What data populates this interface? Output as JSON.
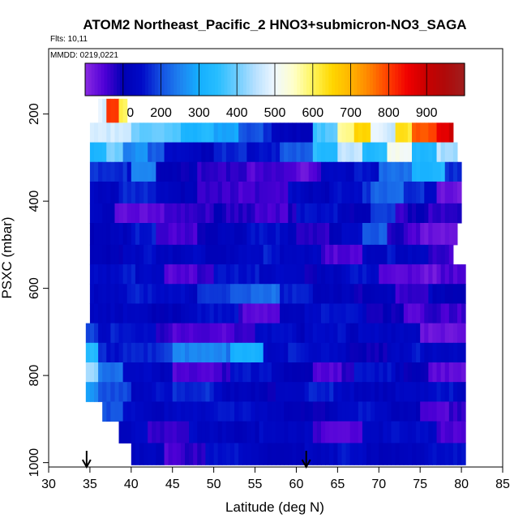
{
  "chart_data": {
    "type": "heatmap",
    "title": "ATOM2 Northeast_Pacific_2 HNO3+submicron-NO3_SAGA",
    "flights_note": "Flts: 10,11",
    "date_note": "MMDD: 0219,0221",
    "xlabel": "Latitude (deg N)",
    "ylabel": "PSXC (mbar)",
    "xlim": [
      30,
      85
    ],
    "ylim": [
      1010,
      50
    ],
    "y_reversed": true,
    "x_ticks": [
      "30",
      "35",
      "40",
      "45",
      "50",
      "55",
      "60",
      "65",
      "70",
      "75",
      "80",
      "85"
    ],
    "y_ticks": [
      "200",
      "400",
      "600",
      "800",
      "1000"
    ],
    "x_tick_values": [
      30,
      35,
      40,
      45,
      50,
      55,
      60,
      65,
      70,
      75,
      80,
      85
    ],
    "y_tick_values": [
      200,
      400,
      600,
      800,
      1000
    ],
    "colorbar": {
      "range": [
        0,
        1000
      ],
      "tick_labels": [
        "100",
        "200",
        "300",
        "400",
        "500",
        "600",
        "700",
        "800",
        "900"
      ],
      "tick_values": [
        100,
        200,
        300,
        400,
        500,
        600,
        700,
        800,
        900
      ],
      "boundaries": [
        0,
        100,
        200,
        300,
        400,
        500,
        600,
        700,
        800,
        900,
        1000
      ],
      "colors": [
        "#8a2be2",
        "#0000b8",
        "#2060e0",
        "#1ab0ff",
        "#e8f4ff",
        "#fff060",
        "#ffa000",
        "#ff2000",
        "#c00000",
        "#a01818"
      ]
    },
    "grid": false,
    "markers": [
      {
        "lat": 34.6,
        "label": "arrow-down"
      },
      {
        "lat": 61.2,
        "label": "arrow-down"
      }
    ],
    "layers": [
      {
        "p_top": 165,
        "p_bot": 220,
        "lat_min": 36,
        "lat_max": 39.5,
        "segments": [
          [
            36,
            37,
            480
          ],
          [
            37,
            38.5,
            820
          ],
          [
            38.5,
            39.5,
            620
          ]
        ]
      },
      {
        "p_top": 220,
        "p_bot": 265,
        "lat_min": 35,
        "lat_max": 79,
        "segments": [
          [
            35,
            40,
            460
          ],
          [
            40,
            46,
            400
          ],
          [
            46,
            50,
            330
          ],
          [
            50,
            53,
            280
          ],
          [
            53,
            57,
            190
          ],
          [
            57,
            62,
            130
          ],
          [
            62,
            65,
            380
          ],
          [
            65,
            67,
            560
          ],
          [
            67,
            69,
            640
          ],
          [
            69,
            72,
            470
          ],
          [
            72,
            74,
            640
          ],
          [
            74,
            77,
            800
          ],
          [
            77,
            79,
            880
          ]
        ]
      },
      {
        "p_top": 265,
        "p_bot": 310,
        "lat_min": 35,
        "lat_max": 79.5,
        "segments": [
          [
            35,
            37,
            330
          ],
          [
            37,
            39,
            420
          ],
          [
            39,
            42,
            260
          ],
          [
            42,
            44,
            200
          ],
          [
            44,
            50,
            130
          ],
          [
            50,
            54,
            180
          ],
          [
            54,
            58,
            140
          ],
          [
            58,
            62,
            200
          ],
          [
            62,
            65,
            350
          ],
          [
            65,
            68,
            470
          ],
          [
            68,
            71,
            340
          ],
          [
            71,
            74,
            500
          ],
          [
            74,
            77,
            310
          ],
          [
            77,
            79.5,
            450
          ]
        ]
      },
      {
        "p_top": 310,
        "p_bot": 355,
        "lat_min": 35,
        "lat_max": 80,
        "segments": [
          [
            35,
            40,
            160
          ],
          [
            40,
            43,
            260
          ],
          [
            43,
            48,
            110
          ],
          [
            48,
            55,
            60
          ],
          [
            55,
            60,
            70
          ],
          [
            60,
            63,
            40
          ],
          [
            63,
            67,
            120
          ],
          [
            67,
            70,
            150
          ],
          [
            70,
            74,
            240
          ],
          [
            74,
            78,
            320
          ],
          [
            78,
            80,
            160
          ]
        ]
      },
      {
        "p_top": 355,
        "p_bot": 405,
        "lat_min": 35,
        "lat_max": 80,
        "segments": [
          [
            35,
            39,
            140
          ],
          [
            39,
            43,
            160
          ],
          [
            43,
            48,
            120
          ],
          [
            48,
            53,
            80
          ],
          [
            53,
            59,
            50
          ],
          [
            59,
            64,
            130
          ],
          [
            64,
            69,
            160
          ],
          [
            69,
            73,
            210
          ],
          [
            73,
            77,
            160
          ],
          [
            77,
            80,
            40
          ]
        ]
      },
      {
        "p_top": 405,
        "p_bot": 450,
        "lat_min": 35,
        "lat_max": 80,
        "segments": [
          [
            35,
            38,
            130
          ],
          [
            38,
            43,
            50
          ],
          [
            43,
            50,
            60
          ],
          [
            50,
            55,
            90
          ],
          [
            55,
            60,
            70
          ],
          [
            60,
            65,
            140
          ],
          [
            65,
            69,
            110
          ],
          [
            69,
            72,
            200
          ],
          [
            72,
            76,
            80
          ],
          [
            76,
            80,
            60
          ]
        ]
      },
      {
        "p_top": 450,
        "p_bot": 500,
        "lat_min": 35,
        "lat_max": 79.5,
        "segments": [
          [
            35,
            40,
            110
          ],
          [
            40,
            43,
            150
          ],
          [
            43,
            48,
            70
          ],
          [
            48,
            54,
            110
          ],
          [
            54,
            60,
            140
          ],
          [
            60,
            64,
            90
          ],
          [
            64,
            68,
            130
          ],
          [
            68,
            71,
            200
          ],
          [
            71,
            75,
            70
          ],
          [
            75,
            79.5,
            40
          ]
        ]
      },
      {
        "p_top": 500,
        "p_bot": 545,
        "lat_min": 35,
        "lat_max": 79,
        "segments": [
          [
            35,
            39,
            120
          ],
          [
            39,
            43,
            140
          ],
          [
            43,
            47,
            110
          ],
          [
            47,
            53,
            130
          ],
          [
            53,
            58,
            150
          ],
          [
            58,
            63,
            120
          ],
          [
            63,
            68,
            60
          ],
          [
            68,
            72,
            140
          ],
          [
            72,
            76,
            120
          ],
          [
            76,
            79,
            60
          ]
        ]
      },
      {
        "p_top": 545,
        "p_bot": 590,
        "lat_min": 35,
        "lat_max": 80.5,
        "segments": [
          [
            35,
            39,
            130
          ],
          [
            39,
            44,
            150
          ],
          [
            44,
            50,
            60
          ],
          [
            50,
            55,
            140
          ],
          [
            55,
            61,
            150
          ],
          [
            61,
            66,
            110
          ],
          [
            66,
            70,
            140
          ],
          [
            70,
            75,
            60
          ],
          [
            75,
            80.5,
            40
          ]
        ]
      },
      {
        "p_top": 590,
        "p_bot": 635,
        "lat_min": 35,
        "lat_max": 80.5,
        "segments": [
          [
            35,
            38,
            140
          ],
          [
            38,
            43,
            150
          ],
          [
            43,
            48,
            130
          ],
          [
            48,
            52,
            190
          ],
          [
            52,
            58,
            220
          ],
          [
            58,
            62,
            150
          ],
          [
            62,
            67,
            130
          ],
          [
            67,
            72,
            110
          ],
          [
            72,
            76,
            50
          ],
          [
            76,
            80.5,
            120
          ]
        ]
      },
      {
        "p_top": 635,
        "p_bot": 680,
        "lat_min": 35,
        "lat_max": 80.5,
        "segments": [
          [
            35,
            39,
            120
          ],
          [
            39,
            42,
            150
          ],
          [
            42,
            48,
            120
          ],
          [
            48,
            53,
            140
          ],
          [
            53,
            58,
            60
          ],
          [
            58,
            63,
            130
          ],
          [
            63,
            68,
            140
          ],
          [
            68,
            73,
            110
          ],
          [
            73,
            77,
            60
          ],
          [
            77,
            80.5,
            50
          ]
        ]
      },
      {
        "p_top": 680,
        "p_bot": 725,
        "lat_min": 34.5,
        "lat_max": 80.5,
        "segments": [
          [
            34.5,
            36,
            200
          ],
          [
            36,
            40,
            150
          ],
          [
            40,
            43,
            140
          ],
          [
            43,
            50,
            60
          ],
          [
            50,
            55,
            60
          ],
          [
            55,
            61,
            130
          ],
          [
            61,
            66,
            160
          ],
          [
            66,
            70,
            130
          ],
          [
            70,
            75,
            120
          ],
          [
            75,
            80.5,
            40
          ]
        ]
      },
      {
        "p_top": 725,
        "p_bot": 770,
        "lat_min": 34.5,
        "lat_max": 80.5,
        "segments": [
          [
            34.5,
            36,
            330
          ],
          [
            36,
            39,
            160
          ],
          [
            39,
            45,
            180
          ],
          [
            45,
            52,
            240
          ],
          [
            52,
            56,
            320
          ],
          [
            56,
            61,
            150
          ],
          [
            61,
            66,
            130
          ],
          [
            66,
            71,
            110
          ],
          [
            71,
            75,
            150
          ],
          [
            75,
            80.5,
            120
          ]
        ]
      },
      {
        "p_top": 770,
        "p_bot": 815,
        "lat_min": 34.5,
        "lat_max": 80.5,
        "segments": [
          [
            34.5,
            36,
            440
          ],
          [
            36,
            39,
            220
          ],
          [
            39,
            45,
            130
          ],
          [
            45,
            52,
            60
          ],
          [
            52,
            57,
            140
          ],
          [
            57,
            62,
            120
          ],
          [
            62,
            67,
            60
          ],
          [
            67,
            72,
            140
          ],
          [
            72,
            76,
            110
          ],
          [
            76,
            80.5,
            50
          ]
        ]
      },
      {
        "p_top": 815,
        "p_bot": 860,
        "lat_min": 34.5,
        "lat_max": 80.5,
        "segments": [
          [
            34.5,
            36,
            280
          ],
          [
            36,
            40,
            210
          ],
          [
            40,
            45,
            140
          ],
          [
            45,
            51,
            160
          ],
          [
            51,
            56,
            130
          ],
          [
            56,
            61,
            110
          ],
          [
            61,
            67,
            150
          ],
          [
            67,
            72,
            130
          ],
          [
            72,
            76,
            120
          ],
          [
            76,
            80.5,
            140
          ]
        ]
      },
      {
        "p_top": 860,
        "p_bot": 905,
        "lat_min": 36.5,
        "lat_max": 80.5,
        "segments": [
          [
            36.5,
            39,
            190
          ],
          [
            39,
            44,
            130
          ],
          [
            44,
            49,
            150
          ],
          [
            49,
            55,
            140
          ],
          [
            55,
            60,
            130
          ],
          [
            60,
            65,
            110
          ],
          [
            65,
            70,
            140
          ],
          [
            70,
            75,
            130
          ],
          [
            75,
            80.5,
            60
          ]
        ]
      },
      {
        "p_top": 905,
        "p_bot": 955,
        "lat_min": 38.5,
        "lat_max": 80.5,
        "segments": [
          [
            38.5,
            42,
            140
          ],
          [
            42,
            47,
            60
          ],
          [
            47,
            52,
            140
          ],
          [
            52,
            57,
            130
          ],
          [
            57,
            62,
            120
          ],
          [
            62,
            68,
            60
          ],
          [
            68,
            73,
            140
          ],
          [
            73,
            77,
            130
          ],
          [
            77,
            80.5,
            60
          ]
        ]
      },
      {
        "p_top": 955,
        "p_bot": 1005,
        "lat_min": 40,
        "lat_max": 80.5,
        "segments": [
          [
            40,
            44,
            140
          ],
          [
            44,
            49,
            60
          ],
          [
            49,
            55,
            140
          ],
          [
            55,
            60,
            130
          ],
          [
            60,
            65,
            120
          ],
          [
            65,
            70,
            140
          ],
          [
            70,
            75,
            130
          ],
          [
            75,
            80.5,
            140
          ]
        ]
      }
    ]
  }
}
